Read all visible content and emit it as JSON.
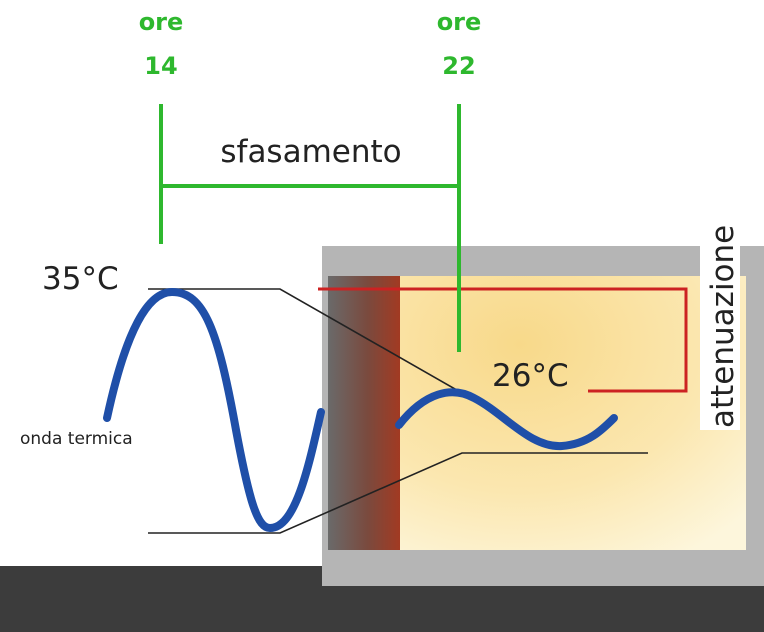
{
  "labels": {
    "time_start_word": "ore",
    "time_start_value": "14",
    "time_end_word": "ore",
    "time_end_value": "22",
    "phase_shift": "sfasamento",
    "attenuation": "attenuazione",
    "outside_peak_temp": "35°C",
    "inside_peak_temp": "26°C",
    "thermal_wave": "onda termica"
  },
  "colors": {
    "timeline_green": "#2eb82e",
    "wave_blue": "#1f4fa8",
    "wall_grey": "#b5b5b5",
    "insulation_layer": "#a23a22",
    "interior_warm": "#fbe9b8",
    "attenuation_box_red": "#cc2222",
    "ground_dark": "#3c3c3c"
  }
}
